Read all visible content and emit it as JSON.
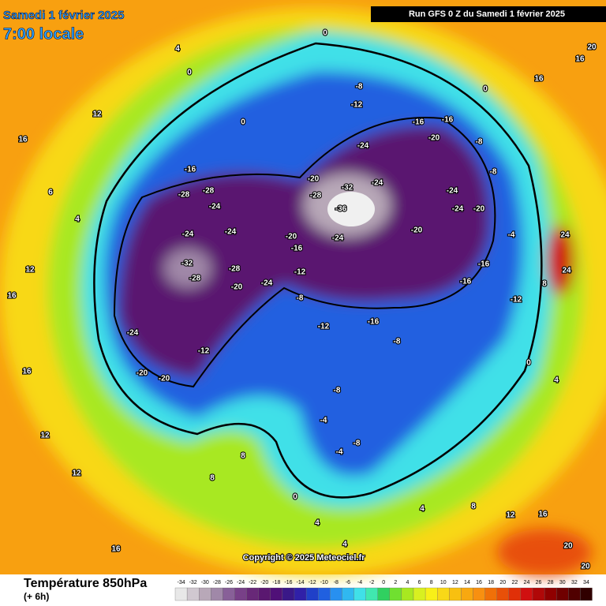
{
  "header": {
    "title": "Samedi 1 février 2025",
    "subtitle": "7:00 locale",
    "run": "Run GFS 0 Z du Samedi 1 février 2025"
  },
  "copyright": "Copyright © 2025 Meteociel.fr",
  "footer": {
    "title": "Température 850hPa",
    "step": "(+ 6h)"
  },
  "scale": {
    "values": [
      -34,
      -32,
      -30,
      -28,
      -26,
      -24,
      -22,
      -20,
      -18,
      -16,
      -14,
      -12,
      -10,
      -8,
      -6,
      -4,
      -2,
      0,
      2,
      4,
      6,
      8,
      10,
      12,
      14,
      16,
      18,
      20,
      22,
      24,
      26,
      28,
      30,
      32,
      34
    ],
    "colors": [
      "#e8e8e8",
      "#d0c8d0",
      "#b8a8b8",
      "#a088a8",
      "#886098",
      "#784088",
      "#682878",
      "#5a1870",
      "#501078",
      "#3a1888",
      "#3020a8",
      "#2040c8",
      "#2060e0",
      "#2890f0",
      "#30b8f0",
      "#40e0e8",
      "#40e8b0",
      "#30d060",
      "#70e030",
      "#a8e820",
      "#d8f020",
      "#f8f018",
      "#f8d818",
      "#f8c010",
      "#f8a810",
      "#f89010",
      "#f07008",
      "#e85008",
      "#e03008",
      "#d01010",
      "#b00808",
      "#900000",
      "#700000",
      "#500000",
      "#300000"
    ]
  },
  "map_labels": [
    0,
    -8,
    -12,
    -16,
    -16,
    -20,
    -24,
    -32,
    -36,
    -24,
    -20,
    -28,
    -24,
    -24,
    -20,
    -20,
    -20,
    -16,
    -24,
    -16,
    -28,
    -28,
    -24,
    -24,
    -24,
    -32,
    -28,
    -28,
    -20,
    -24,
    -12,
    -8,
    -24,
    -20,
    -20,
    -12,
    -12,
    -16,
    -8,
    -8,
    -4,
    -4,
    -8,
    0,
    8,
    4,
    0,
    0,
    12,
    16,
    4,
    6,
    12,
    16,
    16,
    12,
    12,
    16,
    8,
    4,
    4,
    4,
    8,
    12,
    16,
    20,
    20,
    24,
    24,
    16,
    16,
    20,
    -12,
    -16,
    -16,
    0,
    -8,
    -8,
    -4,
    8,
    0,
    4
  ]
}
